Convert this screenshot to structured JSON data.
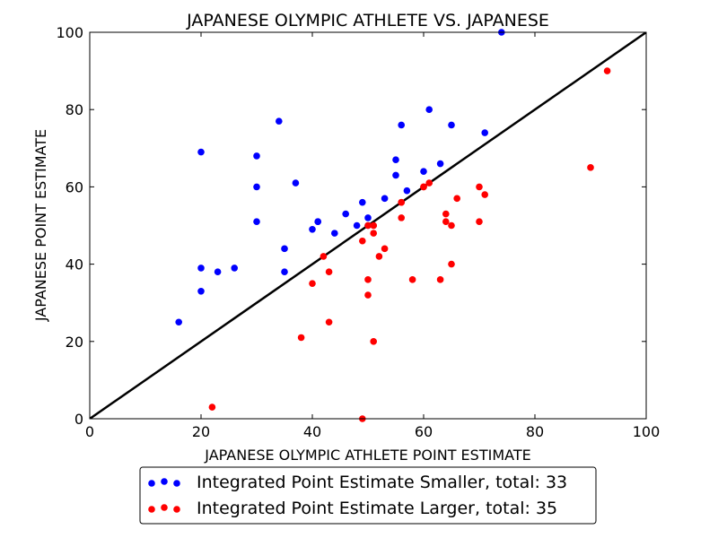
{
  "chart_data": {
    "type": "scatter",
    "title": "JAPANESE OLYMPIC ATHLETE VS. JAPANESE",
    "xlabel": "JAPANESE OLYMPIC ATHLETE POINT ESTIMATE",
    "ylabel": "JAPANESE POINT ESTIMATE",
    "xlim": [
      0,
      100
    ],
    "ylim": [
      0,
      100
    ],
    "xticks": [
      "0",
      "20",
      "40",
      "60",
      "80",
      "100"
    ],
    "yticks": [
      "0",
      "20",
      "40",
      "60",
      "80",
      "100"
    ],
    "grid": false,
    "legend_position": "bottom-center",
    "reference_line": {
      "from": [
        0,
        0
      ],
      "to": [
        100,
        100
      ],
      "color": "#000000"
    },
    "series": [
      {
        "name": "Integrated Point Estimate Smaller, total: 33",
        "color": "#0000ff",
        "points": [
          [
            16,
            25
          ],
          [
            20,
            69
          ],
          [
            20,
            39
          ],
          [
            20,
            33
          ],
          [
            23,
            38
          ],
          [
            26,
            39
          ],
          [
            30,
            68
          ],
          [
            30,
            60
          ],
          [
            30,
            51
          ],
          [
            34,
            77
          ],
          [
            35,
            44
          ],
          [
            35,
            38
          ],
          [
            37,
            61
          ],
          [
            40,
            49
          ],
          [
            41,
            51
          ],
          [
            41,
            51
          ],
          [
            44,
            48
          ],
          [
            46,
            53
          ],
          [
            48,
            50
          ],
          [
            49,
            56
          ],
          [
            50,
            52
          ],
          [
            53,
            57
          ],
          [
            55,
            67
          ],
          [
            55,
            63
          ],
          [
            56,
            76
          ],
          [
            57,
            59
          ],
          [
            60,
            64
          ],
          [
            61,
            80
          ],
          [
            63,
            66
          ],
          [
            65,
            76
          ],
          [
            71,
            74
          ],
          [
            74,
            100
          ],
          [
            50,
            50
          ]
        ]
      },
      {
        "name": "Integrated Point Estimate Larger, total: 35",
        "color": "#ff0000",
        "points": [
          [
            22,
            3
          ],
          [
            38,
            21
          ],
          [
            40,
            35
          ],
          [
            42,
            42
          ],
          [
            43,
            38
          ],
          [
            43,
            25
          ],
          [
            49,
            0
          ],
          [
            49,
            46
          ],
          [
            50,
            50
          ],
          [
            50,
            36
          ],
          [
            50,
            32
          ],
          [
            51,
            50
          ],
          [
            51,
            48
          ],
          [
            51,
            20
          ],
          [
            52,
            42
          ],
          [
            53,
            44
          ],
          [
            56,
            56
          ],
          [
            56,
            52
          ],
          [
            58,
            36
          ],
          [
            60,
            60
          ],
          [
            61,
            61
          ],
          [
            63,
            36
          ],
          [
            64,
            53
          ],
          [
            64,
            51
          ],
          [
            65,
            50
          ],
          [
            65,
            40
          ],
          [
            66,
            57
          ],
          [
            70,
            60
          ],
          [
            70,
            51
          ],
          [
            71,
            58
          ],
          [
            90,
            65
          ],
          [
            93,
            90
          ],
          [
            51,
            50
          ],
          [
            56,
            56
          ],
          [
            60,
            60
          ]
        ]
      }
    ]
  }
}
